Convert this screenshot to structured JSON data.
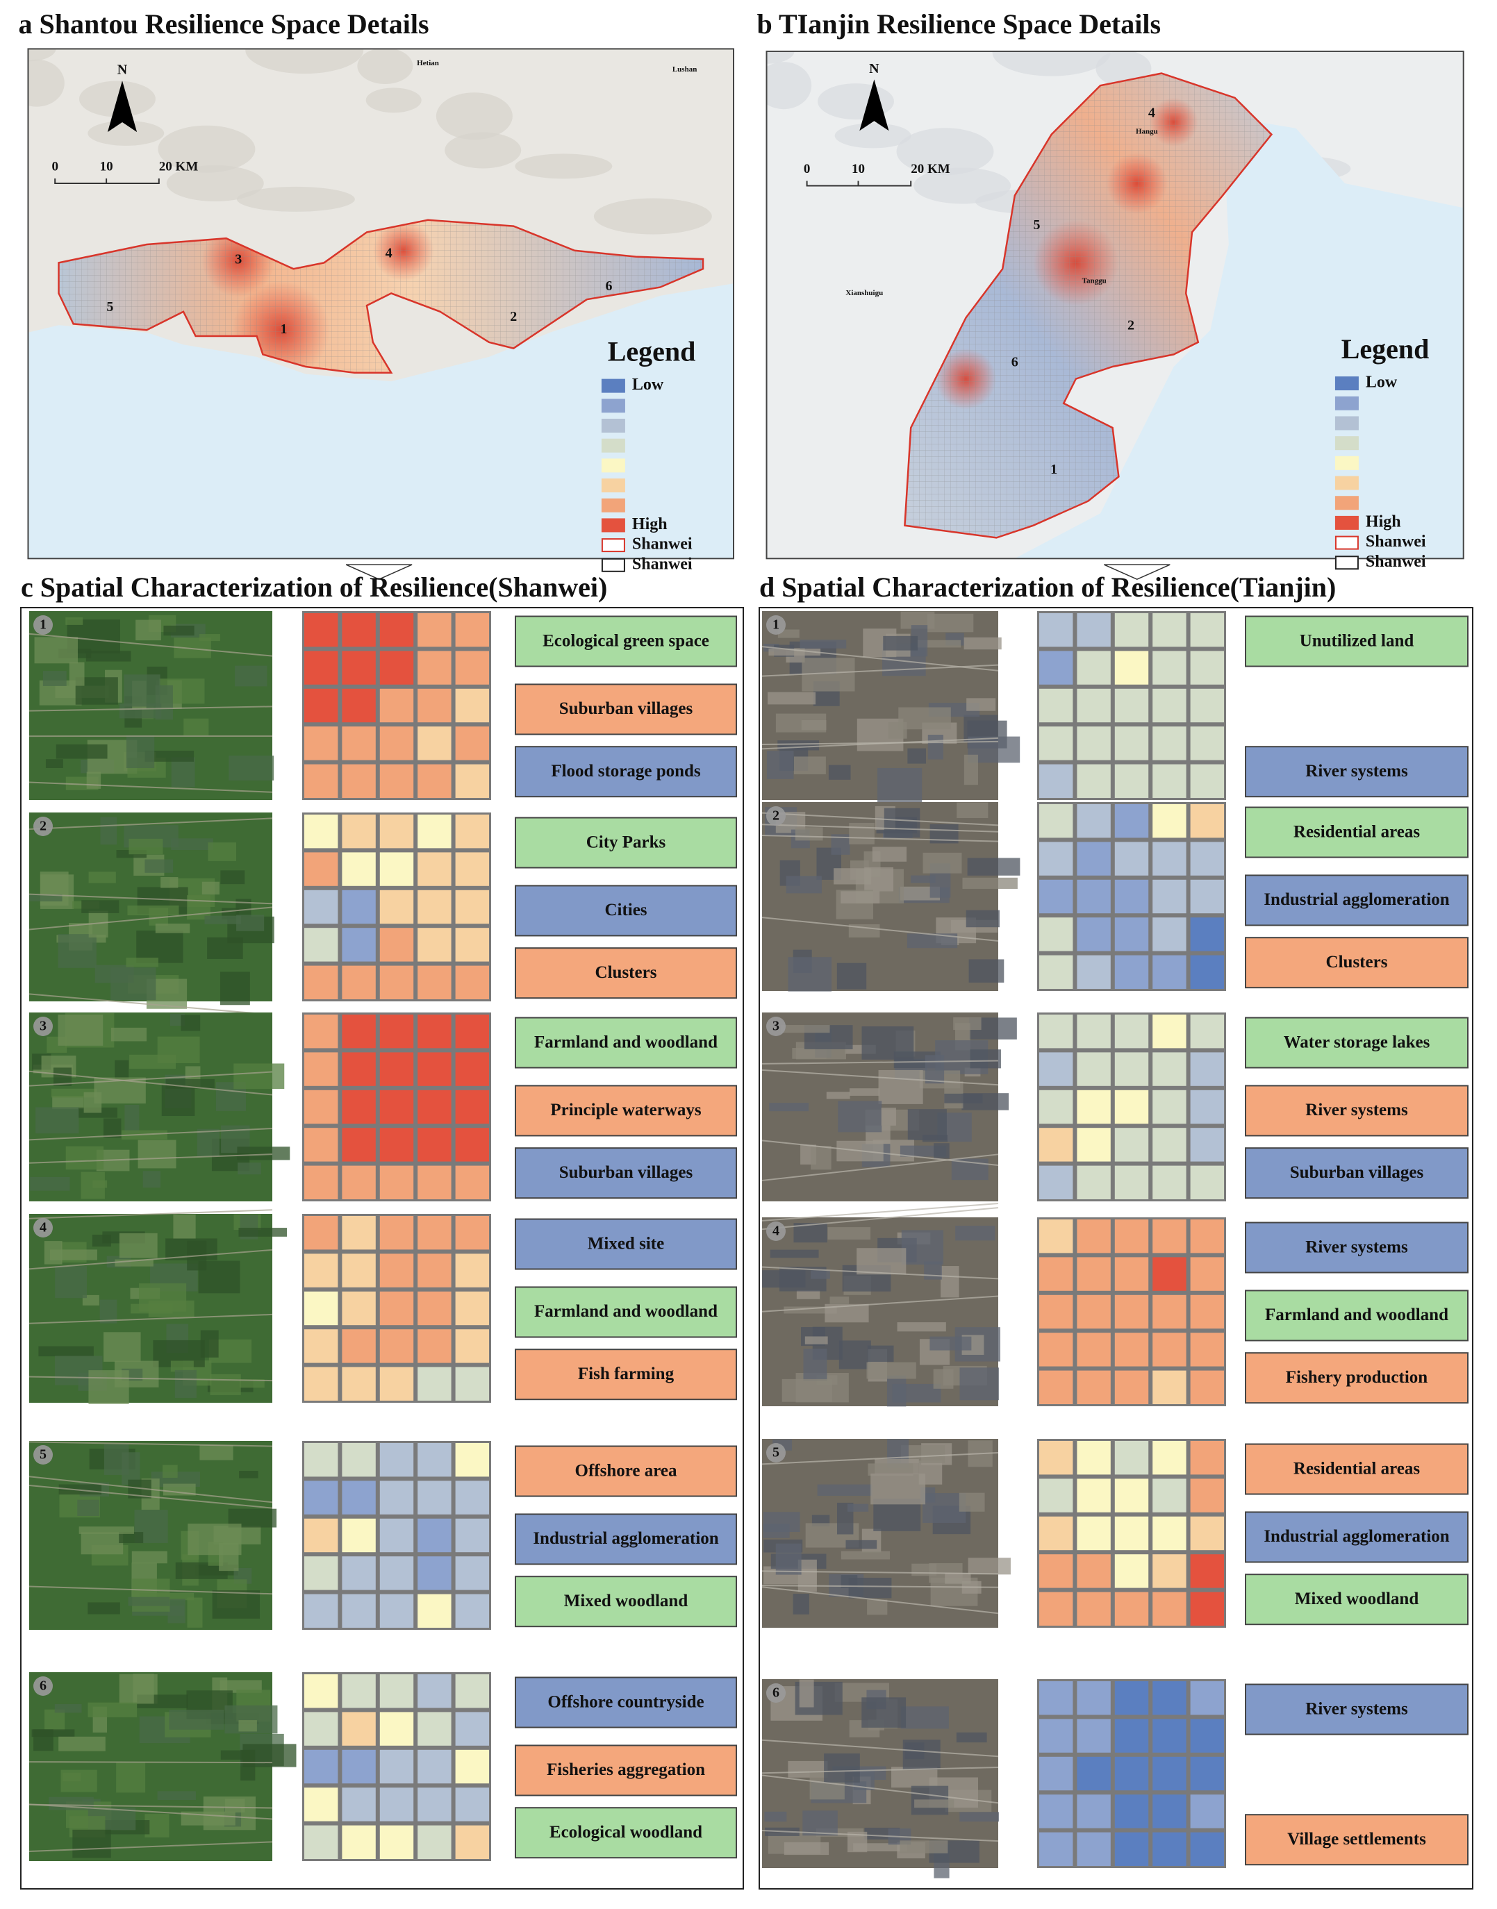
{
  "palette": [
    "#5b7fc0",
    "#8da3cf",
    "#b3c1d4",
    "#d4ddc9",
    "#fbf7c4",
    "#f7d2a1",
    "#f2a479",
    "#e4523e"
  ],
  "panels": [
    {
      "title": "a Shantou Resilience Space Details",
      "north": "N",
      "scale": [
        "0",
        "10",
        "20 KM"
      ],
      "places": [
        "Hetian",
        "Lushan"
      ],
      "regions": [
        "1",
        "2",
        "3",
        "4",
        "5",
        "6"
      ],
      "legend": {
        "title": "Legend",
        "low": "Low",
        "high": "High",
        "boundaries": [
          "Shanwei",
          "Shanwei"
        ]
      }
    },
    {
      "title": "b TIanjin Resilience Space Details",
      "north": "N",
      "scale": [
        "0",
        "10",
        "20 KM"
      ],
      "places": [
        "Hangu",
        "Tanggu",
        "Xianshuigu"
      ],
      "regions": [
        "4",
        "5",
        "2",
        "6",
        "1"
      ],
      "legend": {
        "title": "Legend",
        "low": "Low",
        "high": "High",
        "boundaries": [
          "Shanwei",
          "Shanwei"
        ]
      }
    }
  ],
  "details": [
    {
      "title": "c Spatial Characterization of Resilience(Shanwei)",
      "rows": [
        {
          "number": "1",
          "grid": [
            [
              7,
              7,
              7,
              6,
              6
            ],
            [
              7,
              7,
              7,
              6,
              6
            ],
            [
              7,
              7,
              6,
              6,
              5
            ],
            [
              6,
              6,
              6,
              5,
              6
            ],
            [
              6,
              6,
              6,
              6,
              5
            ]
          ],
          "labels": [
            {
              "text": "Ecological green space",
              "color": "#a9dca2"
            },
            {
              "text": "Suburban villages",
              "color": "#f4a77c"
            },
            {
              "text": "Flood storage ponds",
              "color": "#8199c8"
            }
          ]
        },
        {
          "number": "2",
          "grid": [
            [
              4,
              5,
              5,
              4,
              5
            ],
            [
              6,
              4,
              4,
              5,
              5
            ],
            [
              2,
              1,
              5,
              5,
              5
            ],
            [
              3,
              1,
              6,
              5,
              5
            ],
            [
              6,
              6,
              6,
              6,
              6
            ]
          ],
          "labels": [
            {
              "text": "City Parks",
              "color": "#a9dca2"
            },
            {
              "text": "Cities",
              "color": "#8199c8"
            },
            {
              "text": "Clusters",
              "color": "#f4a77c"
            }
          ]
        },
        {
          "number": "3",
          "grid": [
            [
              6,
              7,
              7,
              7,
              7
            ],
            [
              6,
              7,
              7,
              7,
              7
            ],
            [
              6,
              7,
              7,
              7,
              7
            ],
            [
              6,
              7,
              7,
              7,
              7
            ],
            [
              6,
              6,
              6,
              6,
              6
            ]
          ],
          "labels": [
            {
              "text": "Farmland and woodland",
              "color": "#a9dca2"
            },
            {
              "text": "Principle waterways",
              "color": "#f4a77c"
            },
            {
              "text": "Suburban villages",
              "color": "#8199c8"
            }
          ]
        },
        {
          "number": "4",
          "grid": [
            [
              6,
              5,
              6,
              6,
              6
            ],
            [
              5,
              5,
              6,
              6,
              5
            ],
            [
              4,
              5,
              6,
              6,
              5
            ],
            [
              5,
              6,
              6,
              6,
              5
            ],
            [
              5,
              5,
              5,
              3,
              3
            ]
          ],
          "labels": [
            {
              "text": "Mixed site",
              "color": "#8199c8"
            },
            {
              "text": "Farmland and woodland",
              "color": "#a9dca2"
            },
            {
              "text": "Fish farming",
              "color": "#f4a77c"
            }
          ]
        },
        {
          "number": "5",
          "grid": [
            [
              3,
              3,
              2,
              2,
              4
            ],
            [
              1,
              1,
              2,
              2,
              2
            ],
            [
              5,
              4,
              2,
              1,
              2
            ],
            [
              3,
              2,
              2,
              1,
              2
            ],
            [
              2,
              2,
              2,
              4,
              2
            ]
          ],
          "labels": [
            {
              "text": "Offshore area",
              "color": "#f4a77c"
            },
            {
              "text": "Industrial agglomeration",
              "color": "#8199c8"
            },
            {
              "text": "Mixed woodland",
              "color": "#a9dca2"
            }
          ]
        },
        {
          "number": "6",
          "grid": [
            [
              4,
              3,
              3,
              2,
              3
            ],
            [
              3,
              5,
              4,
              3,
              2
            ],
            [
              1,
              1,
              2,
              2,
              4
            ],
            [
              4,
              2,
              2,
              2,
              2
            ],
            [
              3,
              4,
              4,
              3,
              5
            ]
          ],
          "labels": [
            {
              "text": "Offshore countryside",
              "color": "#8199c8"
            },
            {
              "text": "Fisheries aggregation",
              "color": "#f4a77c"
            },
            {
              "text": "Ecological woodland",
              "color": "#a9dca2"
            }
          ]
        }
      ]
    },
    {
      "title": "d Spatial Characterization of Resilience(Tianjin)",
      "rows": [
        {
          "number": "1",
          "grid": [
            [
              2,
              2,
              3,
              3,
              3
            ],
            [
              1,
              3,
              4,
              3,
              3
            ],
            [
              3,
              3,
              3,
              3,
              3
            ],
            [
              3,
              3,
              3,
              3,
              3
            ],
            [
              2,
              3,
              3,
              3,
              3
            ]
          ],
          "labels": [
            {
              "text": "Unutilized land",
              "color": "#a9dca2"
            },
            {
              "text": "River systems",
              "color": "#8199c8"
            }
          ]
        },
        {
          "number": "2",
          "grid": [
            [
              3,
              2,
              1,
              4,
              5
            ],
            [
              2,
              1,
              2,
              2,
              2
            ],
            [
              1,
              1,
              1,
              2,
              2
            ],
            [
              3,
              1,
              1,
              2,
              0
            ],
            [
              3,
              2,
              1,
              1,
              0
            ]
          ],
          "labels": [
            {
              "text": "Residential areas",
              "color": "#a9dca2"
            },
            {
              "text": "Industrial agglomeration",
              "color": "#8199c8"
            },
            {
              "text": "Clusters",
              "color": "#f4a77c"
            }
          ]
        },
        {
          "number": "3",
          "grid": [
            [
              3,
              3,
              3,
              4,
              3
            ],
            [
              2,
              3,
              3,
              3,
              2
            ],
            [
              3,
              4,
              4,
              3,
              2
            ],
            [
              5,
              4,
              3,
              3,
              2
            ],
            [
              2,
              3,
              3,
              3,
              3
            ]
          ],
          "labels": [
            {
              "text": "Water storage lakes",
              "color": "#a9dca2"
            },
            {
              "text": "River systems",
              "color": "#f4a77c"
            },
            {
              "text": "Suburban villages",
              "color": "#8199c8"
            }
          ]
        },
        {
          "number": "4",
          "grid": [
            [
              5,
              6,
              6,
              6,
              6
            ],
            [
              6,
              6,
              6,
              7,
              6
            ],
            [
              6,
              6,
              6,
              6,
              6
            ],
            [
              6,
              6,
              6,
              6,
              6
            ],
            [
              6,
              6,
              6,
              5,
              6
            ]
          ],
          "labels": [
            {
              "text": "River systems",
              "color": "#8199c8"
            },
            {
              "text": "Farmland and woodland",
              "color": "#a9dca2"
            },
            {
              "text": "Fishery production",
              "color": "#f4a77c"
            }
          ]
        },
        {
          "number": "5",
          "grid": [
            [
              5,
              4,
              3,
              4,
              6
            ],
            [
              3,
              4,
              4,
              3,
              6
            ],
            [
              5,
              4,
              4,
              4,
              5
            ],
            [
              6,
              6,
              4,
              5,
              7
            ],
            [
              6,
              6,
              6,
              6,
              7
            ]
          ],
          "labels": [
            {
              "text": "Residential areas",
              "color": "#f4a77c"
            },
            {
              "text": "Industrial agglomeration",
              "color": "#8199c8"
            },
            {
              "text": "Mixed woodland",
              "color": "#a9dca2"
            }
          ]
        },
        {
          "number": "6",
          "grid": [
            [
              1,
              1,
              0,
              0,
              1
            ],
            [
              1,
              1,
              0,
              0,
              0
            ],
            [
              1,
              0,
              0,
              0,
              0
            ],
            [
              1,
              1,
              0,
              0,
              1
            ],
            [
              1,
              1,
              0,
              0,
              0
            ]
          ],
          "labels": [
            {
              "text": "River systems",
              "color": "#8199c8"
            },
            {
              "text": "Village settlements",
              "color": "#f4a77c"
            }
          ]
        }
      ]
    }
  ]
}
